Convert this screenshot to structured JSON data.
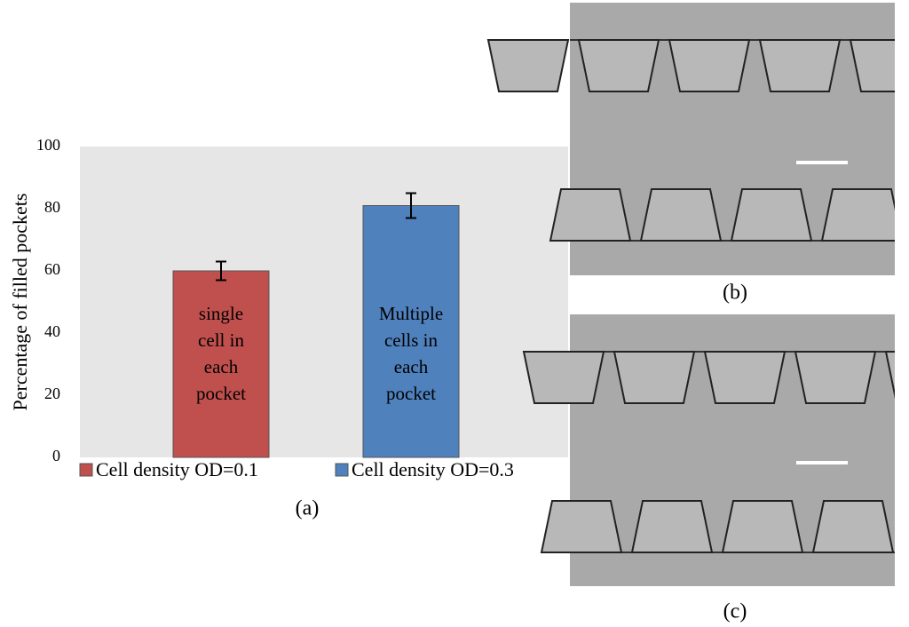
{
  "chart_data": {
    "type": "bar",
    "ylabel": "Percentage of filled pockets",
    "caption": "(a)",
    "series": [
      {
        "name": "Cell density OD=0.1",
        "color": "#c0504d",
        "values": [
          60
        ],
        "errors": [
          3
        ],
        "annotation": [
          "single",
          "cell in",
          "each",
          "pocket"
        ]
      },
      {
        "name": "Cell density OD=0.3",
        "color": "#4f81bd",
        "values": [
          81
        ],
        "errors": [
          4
        ],
        "annotation": [
          "Multiple",
          "cells in",
          "each",
          "pocket"
        ]
      }
    ],
    "ylim": [
      0,
      100
    ],
    "yticks": [
      0,
      20,
      40,
      60,
      80,
      100
    ],
    "grid": false,
    "legend": "bottom"
  },
  "panels": [
    {
      "label": "(b)"
    },
    {
      "label": "(c)"
    }
  ]
}
